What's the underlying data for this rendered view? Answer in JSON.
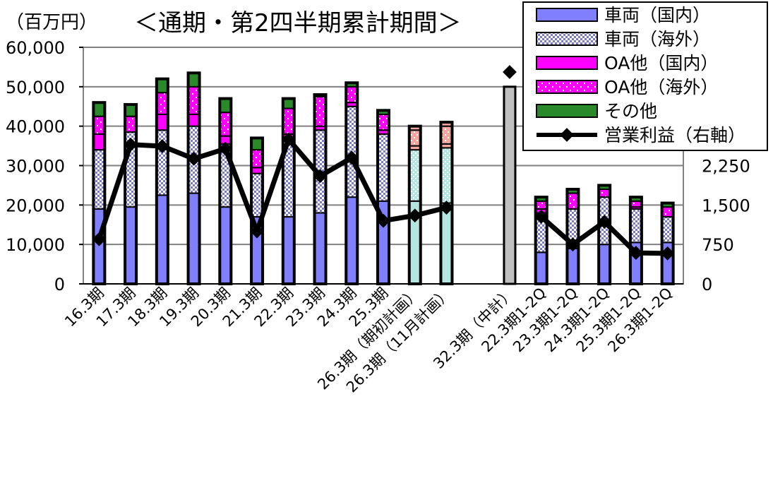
{
  "colors": {
    "vehicle_domestic": "#8080ff",
    "vehicle_overseas_dot": "#7a7ac8",
    "oa_domestic": "#ff00ff",
    "oa_overseas": "#ff00ff",
    "other": "#2a8a2a",
    "plan_vehicle": "#b3e6e0",
    "plan_oa": "#f4a6a0",
    "midterm_total": "#c0c0c0",
    "profit_line": "#000000",
    "axis": "#000000",
    "grid": "#808080"
  },
  "chart_data": {
    "type": "bar",
    "title": "＜通期・第2四半期累計期間＞",
    "unit_label": "（百万円）",
    "ylim": [
      0,
      60000
    ],
    "y_ticks": [
      "0",
      "10,000",
      "20,000",
      "30,000",
      "40,000",
      "50,000",
      "60,000"
    ],
    "y2_ticks": [
      "0",
      "750",
      "1,500",
      "2,250"
    ],
    "y2lim": [
      0,
      4500
    ],
    "grid": true,
    "legend_position": "top-right",
    "categories": [
      "16.3期",
      "17.3期",
      "18.3期",
      "19.3期",
      "20.3期",
      "21.3期",
      "22.3期",
      "23.3期",
      "24.3期",
      "25.3期",
      "26.3期（期初計画）",
      "26.3期（11月計画）",
      "32.3期（中計）",
      "22.3期1-2Q",
      "23.3期1-2Q",
      "24.3期1-2Q",
      "25.3期1-2Q",
      "26.3期1-2Q"
    ],
    "category_slots": [
      0,
      1,
      2,
      3,
      4,
      5,
      6,
      7,
      8,
      9,
      10,
      11,
      13,
      14,
      15,
      16,
      17,
      18
    ],
    "series": [
      {
        "name": "車両（国内）",
        "style": "solid",
        "values": [
          19000,
          19500,
          22500,
          23000,
          19500,
          17000,
          17000,
          18000,
          22000,
          21000,
          21000,
          20500,
          0,
          8000,
          9000,
          10000,
          10500,
          10500
        ]
      },
      {
        "name": "車両（海外）",
        "style": "dotted",
        "values": [
          15000,
          19000,
          16500,
          17000,
          16000,
          11000,
          20000,
          21000,
          23000,
          17000,
          13000,
          14000,
          0,
          10000,
          10000,
          12000,
          8500,
          6500
        ]
      },
      {
        "name": "OA他（国内）",
        "style": "solid",
        "values": [
          4000,
          0,
          4000,
          3000,
          2000,
          1500,
          1000,
          1000,
          1000,
          1000,
          1000,
          1000,
          0,
          1000,
          0,
          0,
          500,
          0
        ]
      },
      {
        "name": "OA他（海外）",
        "style": "dotted",
        "values": [
          4500,
          4000,
          5500,
          7000,
          6000,
          4500,
          6500,
          7500,
          4000,
          4000,
          4000,
          4500,
          0,
          2000,
          4000,
          2000,
          1500,
          2500
        ]
      },
      {
        "name": "その他",
        "style": "solid",
        "values": [
          3500,
          3000,
          3500,
          3500,
          3500,
          3000,
          2500,
          500,
          1000,
          1000,
          1000,
          1000,
          0,
          1000,
          1000,
          1000,
          1000,
          1000
        ]
      }
    ],
    "totals": [
      46000,
      45500,
      52000,
      53500,
      47000,
      37000,
      47000,
      48000,
      51000,
      44000,
      40000,
      41000,
      50000,
      22000,
      24000,
      25000,
      22000,
      20500
    ],
    "plan_indices": [
      10,
      11
    ],
    "midterm_index": 12,
    "profit": {
      "name": "営業利益（右軸）",
      "values": [
        850,
        2650,
        2620,
        2380,
        2570,
        1000,
        2750,
        2050,
        2400,
        1200,
        1300,
        1450,
        4030,
        1280,
        750,
        1180,
        590,
        580
      ],
      "line_breaks_after": [
        11
      ]
    },
    "legend": [
      "車両（国内）",
      "車両（海外）",
      "OA他（国内）",
      "OA他（海外）",
      "その他",
      "営業利益（右軸）"
    ]
  }
}
